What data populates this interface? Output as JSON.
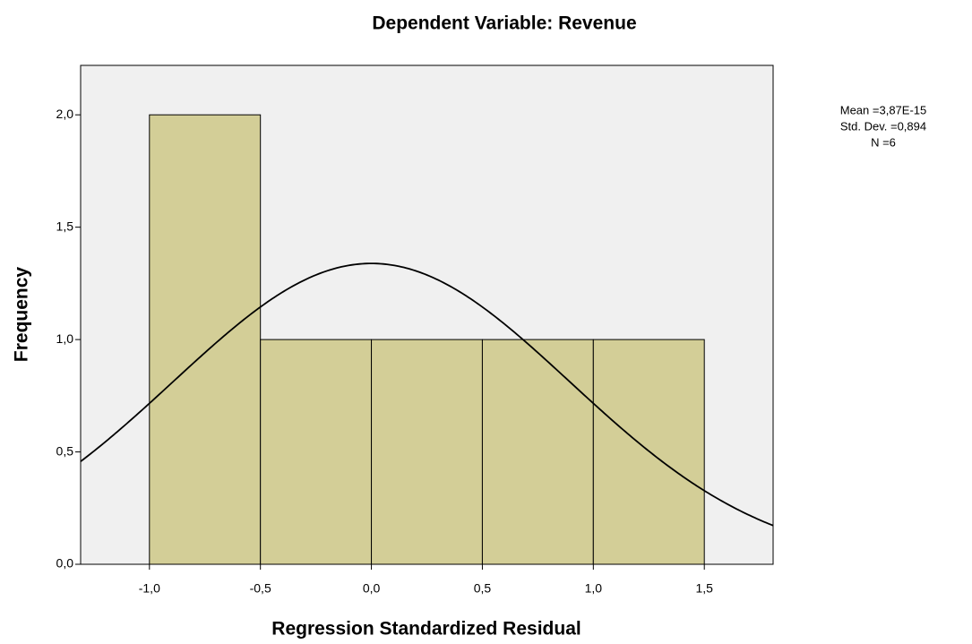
{
  "chart_data": {
    "type": "histogram",
    "title": "Dependent Variable: Revenue",
    "xlabel": "Regression Standardized Residual",
    "ylabel": "Frequency",
    "bins": [
      -1.0,
      -0.5,
      0.0,
      0.5,
      1.0,
      1.5
    ],
    "values": [
      2,
      1,
      1,
      1,
      1
    ],
    "color": "#d3ce97",
    "background": "#f0f0f0",
    "xlim": [
      -1.31,
      1.81
    ],
    "ylim": [
      0,
      2.22
    ],
    "xticks": [
      {
        "value": -1.0,
        "label": "-1,0"
      },
      {
        "value": -0.5,
        "label": "-0,5"
      },
      {
        "value": 0.0,
        "label": "0,0"
      },
      {
        "value": 0.5,
        "label": "0,5"
      },
      {
        "value": 1.0,
        "label": "1,0"
      },
      {
        "value": 1.5,
        "label": "1,5"
      }
    ],
    "yticks": [
      {
        "value": 0.0,
        "label": "0,0"
      },
      {
        "value": 0.5,
        "label": "0,5"
      },
      {
        "value": 1.0,
        "label": "1,0"
      },
      {
        "value": 1.5,
        "label": "1,5"
      },
      {
        "value": 2.0,
        "label": "2,0"
      }
    ],
    "stats": [
      {
        "value": 3.87e-15,
        "label": "Mean =3,87E-15"
      },
      {
        "value": 0.894,
        "label": "Std. Dev. =0,894"
      },
      {
        "value": 6,
        "label": "N =6"
      }
    ]
  }
}
